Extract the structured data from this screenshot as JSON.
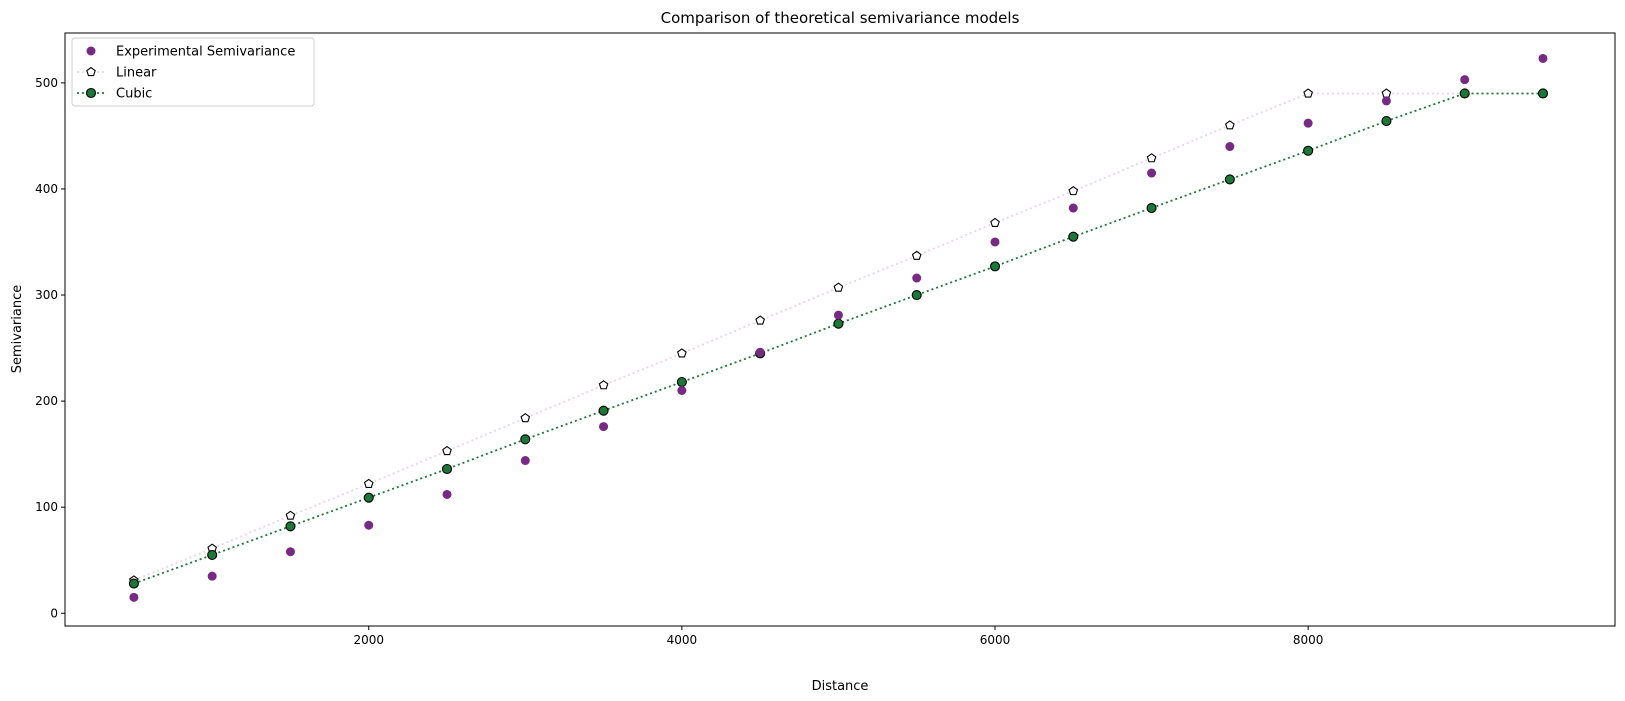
{
  "chart_data": {
    "type": "scatter",
    "title": "Comparison of theoretical semivariance models",
    "xlabel": "Distance",
    "ylabel": "Semivariance",
    "xlim": [
      60,
      9960
    ],
    "ylim": [
      -12,
      547
    ],
    "xticks": [
      2000,
      4000,
      6000,
      8000
    ],
    "yticks": [
      0,
      100,
      200,
      300,
      400,
      500
    ],
    "grid": false,
    "legend_position": "top-left",
    "x": [
      500,
      1000,
      1500,
      2000,
      2500,
      3000,
      3500,
      4000,
      4500,
      5000,
      5500,
      6000,
      6500,
      7000,
      7500,
      8000,
      8500,
      9000,
      9500
    ],
    "series": [
      {
        "name": "Experimental Semivariance",
        "style": "scatter",
        "color": "#762a83",
        "values": [
          15,
          35,
          58,
          83,
          112,
          144,
          176,
          210,
          246,
          281,
          316,
          350,
          382,
          415,
          440,
          462,
          483,
          503,
          523
        ]
      },
      {
        "name": "Linear",
        "style": "dotted-line-pentagon",
        "color": "#e7d4e8",
        "marker_edge": "#000000",
        "marker_face": "#ffffff",
        "values": [
          31,
          61,
          92,
          122,
          153,
          184,
          215,
          245,
          276,
          307,
          337,
          368,
          398,
          429,
          460,
          490,
          490,
          490,
          490
        ]
      },
      {
        "name": "Cubic",
        "style": "dotted-line-circle",
        "color": "#1b7837",
        "marker_edge": "#000000",
        "marker_face": "#1b7837",
        "values": [
          28,
          55,
          82,
          109,
          136,
          164,
          191,
          218,
          245,
          273,
          300,
          327,
          355,
          382,
          409,
          436,
          464,
          490,
          490
        ]
      }
    ]
  }
}
